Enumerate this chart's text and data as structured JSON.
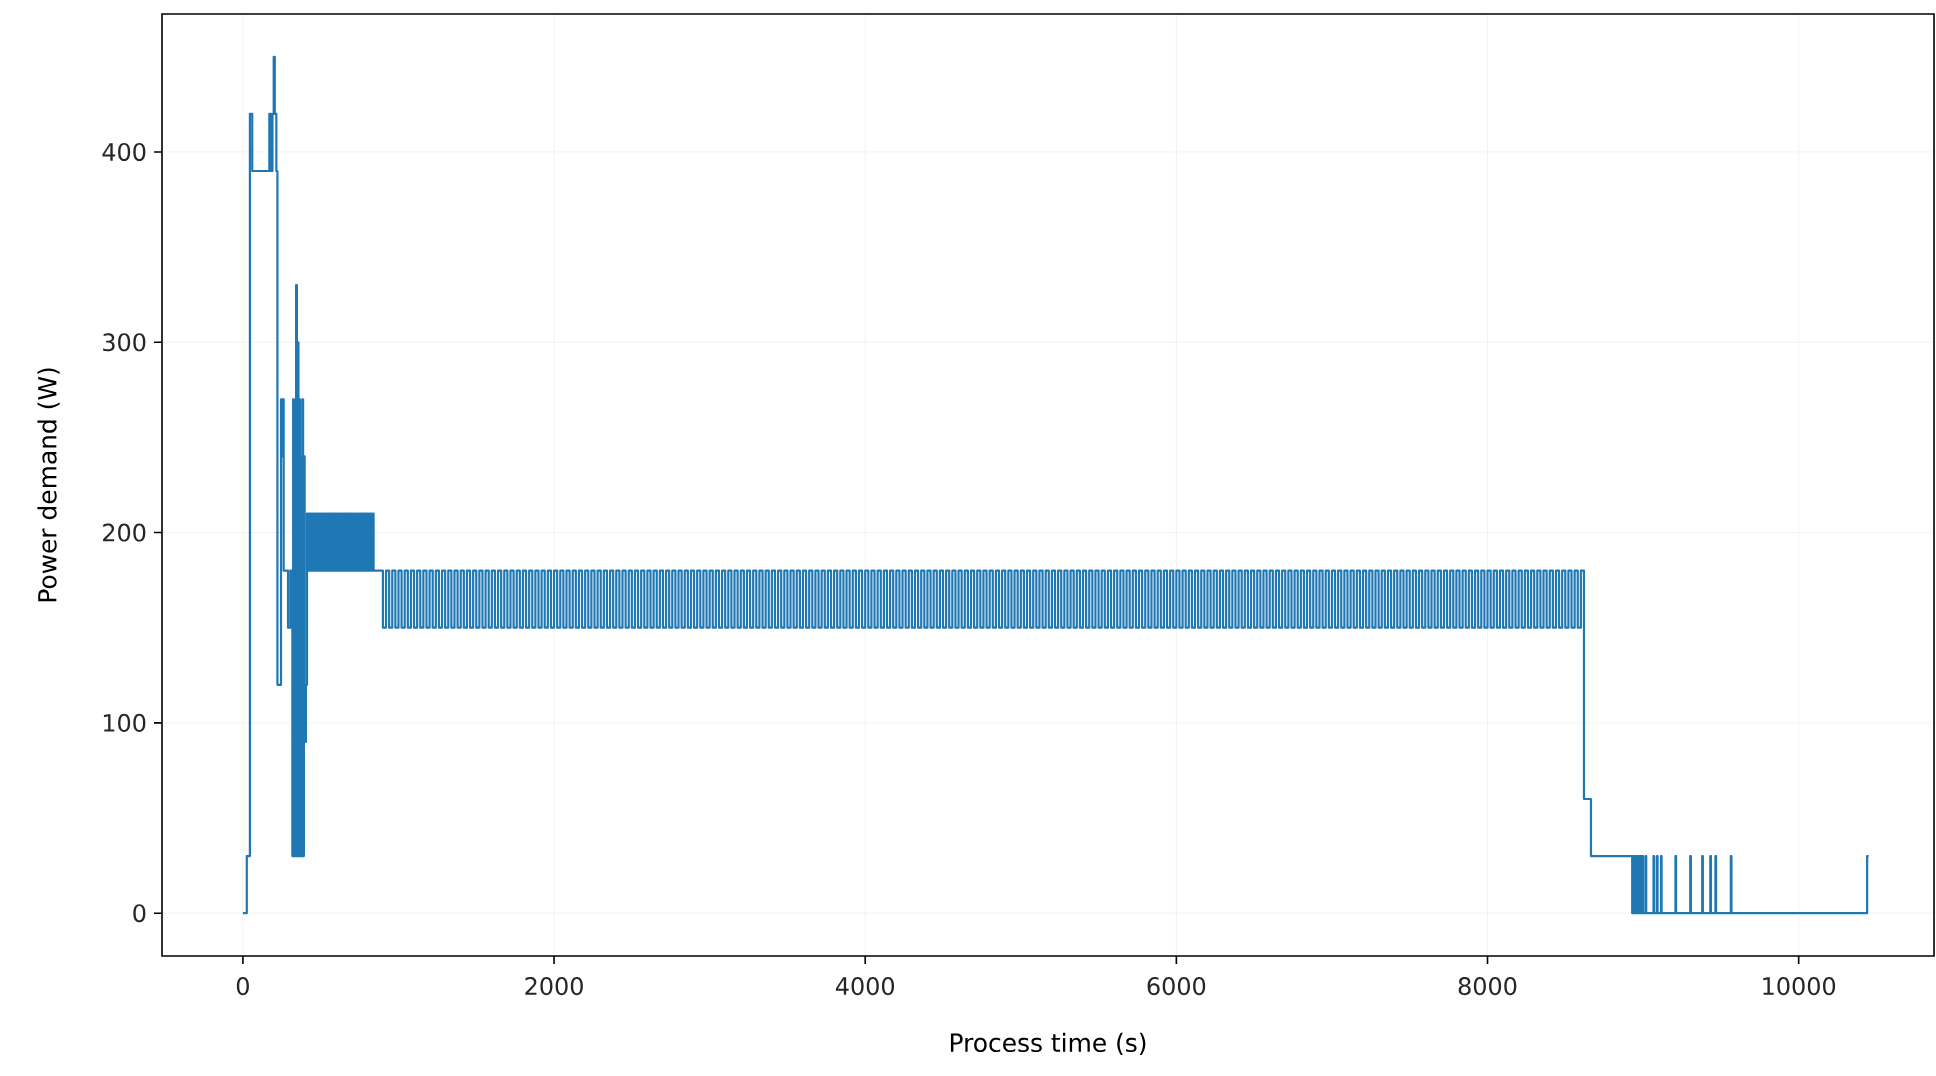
{
  "chart_data": {
    "type": "step",
    "xlabel": "Process time (s)",
    "ylabel": "Power demand (W)",
    "xlim": [
      -520,
      10870
    ],
    "ylim": [
      -22.5,
      472.5
    ],
    "xticks": [
      0,
      2000,
      4000,
      6000,
      8000,
      10000
    ],
    "yticks": [
      0,
      100,
      200,
      300,
      400
    ],
    "grid": true,
    "series": [
      {
        "color": "#1f77b4",
        "x": [
          0,
          25,
          45,
          60,
          170,
          180,
          190,
          198,
          205,
          215,
          222,
          245,
          250,
          255,
          262,
          290,
          305,
          318,
          323,
          328,
          333,
          338,
          342,
          347,
          352,
          357,
          362,
          367,
          372,
          377,
          382,
          387,
          392,
          397,
          405,
          412,
          420,
          430,
          440,
          450,
          460,
          470,
          480,
          490,
          500,
          510,
          520,
          530,
          540,
          550,
          560,
          570,
          580,
          590,
          600,
          610,
          620,
          630,
          640,
          650,
          660,
          670,
          680,
          690,
          700,
          710,
          720,
          730,
          740,
          750,
          760,
          770,
          780,
          790,
          800,
          810,
          820,
          830,
          840,
          900,
          920,
          940,
          960,
          980,
          1000,
          1020,
          1040,
          1060,
          1080,
          1100,
          1120,
          1140,
          1160,
          1180,
          1200,
          1220,
          1240,
          1260,
          1280,
          1300,
          1320,
          1340,
          1360,
          1380,
          1400,
          1420,
          1440,
          1460,
          1480,
          1500,
          1520,
          1540,
          1560,
          1580,
          1600,
          1620,
          1640,
          1660,
          1680,
          1700,
          1720,
          1740,
          1760,
          1780,
          1800,
          1820,
          1840,
          1860,
          1880,
          1900,
          1920,
          1940,
          1960,
          1980,
          2000,
          2020,
          2040,
          2060,
          2080,
          2100,
          2120,
          2140,
          2160,
          2180,
          2200,
          2220,
          2240,
          2260,
          2280,
          2300,
          2320,
          2340,
          2360,
          2380,
          2400,
          2420,
          2440,
          2460,
          2480,
          2500,
          2520,
          2540,
          2560,
          2580,
          2600,
          2620,
          2640,
          2660,
          2680,
          2700,
          2720,
          2740,
          2760,
          2780,
          2800,
          2820,
          2840,
          2860,
          2880,
          2900,
          2920,
          2940,
          2960,
          2980,
          3000,
          3020,
          3040,
          3060,
          3080,
          3100,
          3120,
          3140,
          3160,
          3180,
          3200,
          3220,
          3240,
          3260,
          3280,
          3300,
          3320,
          3340,
          3360,
          3380,
          3400,
          3420,
          3440,
          3460,
          3480,
          3500,
          3520,
          3540,
          3560,
          3580,
          3600,
          3620,
          3640,
          3660,
          3680,
          3700,
          3720,
          3740,
          3760,
          3780,
          3800,
          3820,
          3840,
          3860,
          3880,
          3900,
          3920,
          3940,
          3960,
          3980,
          4000,
          4020,
          4040,
          4060,
          4080,
          4100,
          4120,
          4140,
          4160,
          4180,
          4200,
          4220,
          4240,
          4260,
          4280,
          4300,
          4320,
          4340,
          4360,
          4380,
          4400,
          4420,
          4440,
          4460,
          4480,
          4500,
          4520,
          4540,
          4560,
          4580,
          4600,
          4620,
          4640,
          4660,
          4680,
          4700,
          4720,
          4740,
          4760,
          4780,
          4800,
          4820,
          4840,
          4860,
          4880,
          4900,
          4920,
          4940,
          4960,
          4980,
          5000,
          5020,
          5040,
          5060,
          5080,
          5100,
          5120,
          5140,
          5160,
          5180,
          5200,
          5220,
          5240,
          5260,
          5280,
          5300,
          5320,
          5340,
          5360,
          5380,
          5400,
          5420,
          5440,
          5460,
          5480,
          5500,
          5520,
          5540,
          5560,
          5580,
          5600,
          5620,
          5640,
          5660,
          5680,
          5700,
          5720,
          5740,
          5760,
          5780,
          5800,
          5820,
          5840,
          5860,
          5880,
          5900,
          5920,
          5940,
          5960,
          5980,
          6000,
          6020,
          6040,
          6060,
          6080,
          6100,
          6120,
          6140,
          6160,
          6180,
          6200,
          6220,
          6240,
          6260,
          6280,
          6300,
          6320,
          6340,
          6360,
          6380,
          6400,
          6420,
          6440,
          6460,
          6480,
          6500,
          6520,
          6540,
          6560,
          6580,
          6600,
          6620,
          6640,
          6660,
          6680,
          6700,
          6720,
          6740,
          6760,
          6780,
          6800,
          6820,
          6840,
          6860,
          6880,
          6900,
          6920,
          6940,
          6960,
          6980,
          7000,
          7020,
          7040,
          7060,
          7080,
          7100,
          7120,
          7140,
          7160,
          7180,
          7200,
          7220,
          7240,
          7260,
          7280,
          7300,
          7320,
          7340,
          7360,
          7380,
          7400,
          7420,
          7440,
          7460,
          7480,
          7500,
          7520,
          7540,
          7560,
          7580,
          7600,
          7620,
          7640,
          7660,
          7680,
          7700,
          7720,
          7740,
          7760,
          7780,
          7800,
          7820,
          7840,
          7860,
          7880,
          7900,
          7920,
          7940,
          7960,
          7980,
          8000,
          8020,
          8040,
          8060,
          8080,
          8100,
          8120,
          8140,
          8160,
          8180,
          8200,
          8220,
          8240,
          8260,
          8280,
          8300,
          8320,
          8340,
          8360,
          8380,
          8400,
          8420,
          8440,
          8460,
          8480,
          8500,
          8520,
          8540,
          8560,
          8580,
          8600,
          8620,
          8665,
          8930,
          8940,
          8945,
          8951,
          8956,
          8962,
          8967,
          8973,
          8978,
          8984,
          8989,
          8995,
          9000,
          9016,
          9020,
          9067,
          9071,
          9089,
          9093,
          9115,
          9119,
          9208,
          9212,
          9303,
          9307,
          9380,
          9384,
          9432,
          9436,
          9465,
          9469,
          9564,
          9568,
          10440,
          10450
        ],
        "values": [
          0,
          30,
          420,
          390,
          420,
          390,
          420,
          450,
          420,
          390,
          120,
          270,
          240,
          270,
          180,
          150,
          180,
          30,
          270,
          30,
          240,
          30,
          330,
          30,
          300,
          30,
          270,
          30,
          240,
          30,
          270,
          30,
          240,
          90,
          120,
          210,
          180,
          210,
          180,
          210,
          180,
          210,
          180,
          210,
          180,
          210,
          180,
          210,
          180,
          210,
          180,
          210,
          180,
          210,
          180,
          210,
          180,
          210,
          180,
          210,
          180,
          210,
          180,
          210,
          180,
          210,
          180,
          210,
          180,
          210,
          180,
          210,
          180,
          210,
          180,
          210,
          180,
          210,
          180,
          150,
          180,
          150,
          180,
          150,
          180,
          150,
          180,
          150,
          180,
          150,
          180,
          150,
          180,
          150,
          180,
          150,
          180,
          150,
          180,
          150,
          180,
          150,
          180,
          150,
          180,
          150,
          180,
          150,
          180,
          150,
          180,
          150,
          180,
          150,
          180,
          150,
          180,
          150,
          180,
          150,
          180,
          150,
          180,
          150,
          180,
          150,
          180,
          150,
          180,
          150,
          180,
          150,
          180,
          150,
          180,
          150,
          180,
          150,
          180,
          150,
          180,
          150,
          180,
          150,
          180,
          150,
          180,
          150,
          180,
          150,
          180,
          150,
          180,
          150,
          180,
          150,
          180,
          150,
          180,
          150,
          180,
          150,
          180,
          150,
          180,
          150,
          180,
          150,
          180,
          150,
          180,
          150,
          180,
          150,
          180,
          150,
          180,
          150,
          180,
          150,
          180,
          150,
          180,
          150,
          180,
          150,
          180,
          150,
          180,
          150,
          180,
          150,
          180,
          150,
          180,
          150,
          180,
          150,
          180,
          150,
          180,
          150,
          180,
          150,
          180,
          150,
          180,
          150,
          180,
          150,
          180,
          150,
          180,
          150,
          180,
          150,
          180,
          150,
          180,
          150,
          180,
          150,
          180,
          150,
          180,
          150,
          180,
          150,
          180,
          150,
          180,
          150,
          180,
          150,
          180,
          150,
          180,
          150,
          180,
          150,
          180,
          150,
          180,
          150,
          180,
          150,
          180,
          150,
          180,
          150,
          180,
          150,
          180,
          150,
          180,
          150,
          180,
          150,
          180,
          150,
          180,
          150,
          180,
          150,
          180,
          150,
          180,
          150,
          180,
          150,
          180,
          150,
          180,
          150,
          180,
          150,
          180,
          150,
          180,
          150,
          180,
          150,
          180,
          150,
          180,
          150,
          180,
          150,
          180,
          150,
          180,
          150,
          180,
          150,
          180,
          150,
          180,
          150,
          180,
          150,
          180,
          150,
          180,
          150,
          180,
          150,
          180,
          150,
          180,
          150,
          180,
          150,
          180,
          150,
          180,
          150,
          180,
          150,
          180,
          150,
          180,
          150,
          180,
          150,
          180,
          150,
          180,
          150,
          180,
          150,
          180,
          150,
          180,
          150,
          180,
          150,
          180,
          150,
          180,
          150,
          180,
          150,
          180,
          150,
          180,
          150,
          180,
          150,
          180,
          150,
          180,
          150,
          180,
          150,
          180,
          150,
          180,
          150,
          180,
          150,
          180,
          150,
          180,
          150,
          180,
          150,
          180,
          150,
          180,
          150,
          180,
          150,
          180,
          150,
          180,
          150,
          180,
          150,
          180,
          150,
          180,
          150,
          180,
          150,
          180,
          150,
          180,
          150,
          180,
          150,
          180,
          150,
          180,
          150,
          180,
          150,
          180,
          150,
          180,
          150,
          180,
          150,
          180,
          150,
          180,
          150,
          180,
          150,
          180,
          150,
          180,
          150,
          180,
          150,
          180,
          150,
          180,
          150,
          180,
          150,
          180,
          150,
          180,
          150,
          180,
          150,
          180,
          150,
          180,
          150,
          180,
          150,
          180,
          150,
          180,
          150,
          180,
          150,
          180,
          150,
          180,
          150,
          180,
          150,
          180,
          150,
          180,
          150,
          180,
          150,
          180,
          150,
          180,
          150,
          180,
          150,
          180,
          150,
          180,
          150,
          180,
          150,
          180,
          150,
          180,
          60,
          30,
          0,
          30,
          0,
          30,
          0,
          30,
          0,
          30,
          0,
          30,
          0,
          30,
          0,
          30,
          0,
          30,
          0,
          30,
          0,
          30,
          0,
          30,
          0,
          30,
          0,
          30,
          0,
          30,
          0,
          30,
          0,
          30,
          0,
          30,
          30
        ]
      }
    ]
  }
}
